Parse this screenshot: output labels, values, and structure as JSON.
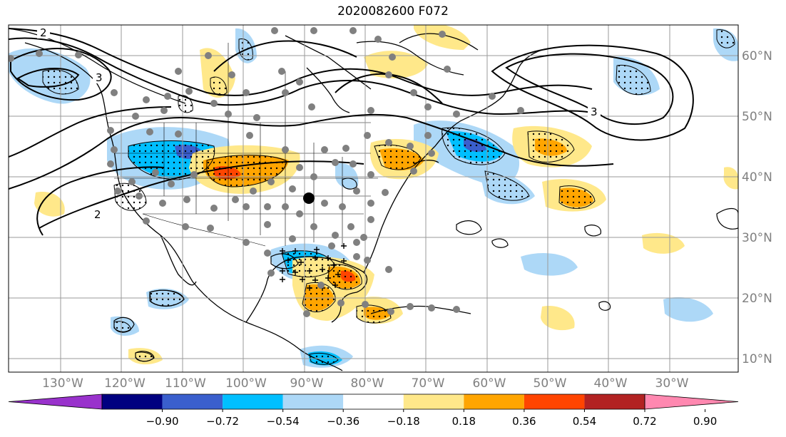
{
  "title": "2020082600 F072",
  "lon_labels": [
    "130°W",
    "120°W",
    "110°W",
    "100°W",
    "90°W",
    "80°W",
    "70°W",
    "60°W",
    "50°W",
    "40°W",
    "30°W"
  ],
  "lat_labels": [
    "60°N",
    "50°N",
    "40°N",
    "30°N",
    "20°N",
    "10°N"
  ],
  "contour_labels": [
    "2",
    "3",
    "2",
    "3"
  ],
  "colorbar": {
    "colors": [
      "#9932cc",
      "#000080",
      "#3a5fcd",
      "#00bfff",
      "#add8f7",
      "#ffffff",
      "#ffe88a",
      "#ffa500",
      "#ff4500",
      "#b22222",
      "#ff88b0"
    ],
    "under_color": "#9932cc",
    "over_color": "#ff88b0",
    "tick_labels": [
      "−0.90",
      "−0.72",
      "−0.54",
      "−0.36",
      "−0.18",
      "0.18",
      "0.36",
      "0.54",
      "0.72",
      "0.90"
    ]
  }
}
